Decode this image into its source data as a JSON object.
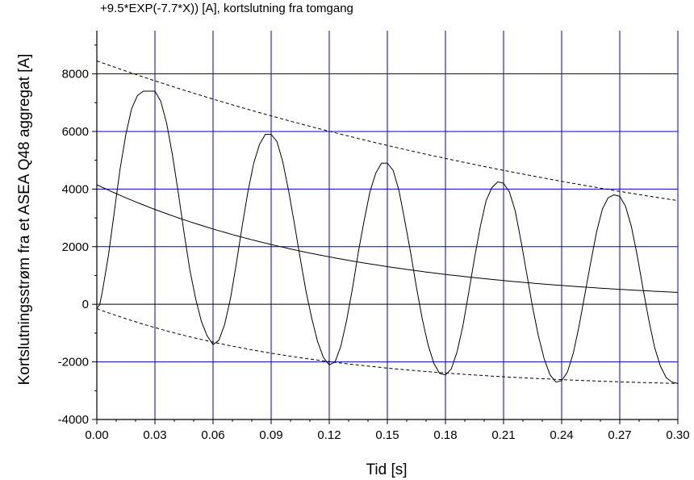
{
  "chart_data": {
    "type": "line",
    "title_partial": "+9.5*EXP(-7.7*X)) [A], kortslutning fra tomgang",
    "xlabel": "Tid [s]",
    "ylabel": "Kortslutningsstrøm fra et ASEA Q48 aggregat [A]",
    "xlim": [
      0,
      0.3
    ],
    "ylim": [
      -4000,
      9500
    ],
    "xticks": [
      "0.00",
      "0.03",
      "0.06",
      "0.09",
      "0.12",
      "0.15",
      "0.18",
      "0.21",
      "0.24",
      "0.27",
      "0.30"
    ],
    "yticks": [
      "-4000",
      "-2000",
      "0",
      "2000",
      "4000",
      "6000",
      "8000"
    ],
    "grid": true,
    "grid_color": "#0000cc",
    "line_color": "#000000",
    "series": [
      {
        "style": "solid",
        "x": [
          0.0,
          0.0015,
          0.003,
          0.006,
          0.009,
          0.012,
          0.015,
          0.018,
          0.021,
          0.024,
          0.027,
          0.03,
          0.033,
          0.036,
          0.039,
          0.042,
          0.045,
          0.048,
          0.051,
          0.054,
          0.057,
          0.06,
          0.063,
          0.066,
          0.069,
          0.072,
          0.075,
          0.078,
          0.081,
          0.084,
          0.087,
          0.09,
          0.093,
          0.096,
          0.099,
          0.102,
          0.105,
          0.108,
          0.111,
          0.114,
          0.117,
          0.12,
          0.123,
          0.126,
          0.129,
          0.132,
          0.135,
          0.138,
          0.141,
          0.144,
          0.147,
          0.15,
          0.153,
          0.156,
          0.159,
          0.162,
          0.165,
          0.168,
          0.171,
          0.174,
          0.177,
          0.18,
          0.183,
          0.186,
          0.189,
          0.192,
          0.195,
          0.198,
          0.201,
          0.204,
          0.207,
          0.21,
          0.213,
          0.216,
          0.219,
          0.222,
          0.225,
          0.228,
          0.231,
          0.234,
          0.237,
          0.24,
          0.243,
          0.246,
          0.249,
          0.252,
          0.255,
          0.258,
          0.261,
          0.264,
          0.267,
          0.27,
          0.273,
          0.276,
          0.279,
          0.282,
          0.285,
          0.288,
          0.291,
          0.294,
          0.297,
          0.3
        ],
        "y": [
          -150,
          -10,
          500,
          1700,
          3200,
          4700,
          5900,
          6800,
          7250,
          7400,
          7400,
          7400,
          7050,
          6300,
          5200,
          3900,
          2500,
          1200,
          200,
          -600,
          -1100,
          -1400,
          -1250,
          -700,
          200,
          1400,
          2700,
          3900,
          4900,
          5550,
          5900,
          5900,
          5650,
          4950,
          3950,
          2800,
          1600,
          450,
          -500,
          -1300,
          -1850,
          -2100,
          -2000,
          -1450,
          -550,
          550,
          1800,
          2900,
          3900,
          4550,
          4900,
          4900,
          4650,
          3950,
          2900,
          1800,
          600,
          -500,
          -1400,
          -2050,
          -2400,
          -2450,
          -2250,
          -1650,
          -750,
          400,
          1600,
          2700,
          3600,
          4050,
          4250,
          4200,
          3900,
          3250,
          2200,
          1050,
          -100,
          -1100,
          -1900,
          -2450,
          -2700,
          -2650,
          -2350,
          -1700,
          -750,
          350,
          1450,
          2500,
          3300,
          3700,
          3800,
          3750,
          3400,
          2700,
          1700,
          550,
          -550,
          -1500,
          -2150,
          -2550,
          -2700,
          -2750
        ]
      },
      {
        "style": "solid",
        "formula": "dc_component",
        "y0": 4150,
        "decay": 7.7
      },
      {
        "style": "dashed",
        "formula": "upper_envelope",
        "y0": 8450,
        "y_end": 3600
      },
      {
        "style": "dashed",
        "formula": "lower_envelope",
        "y0": -150,
        "y_end": -2750
      }
    ]
  }
}
